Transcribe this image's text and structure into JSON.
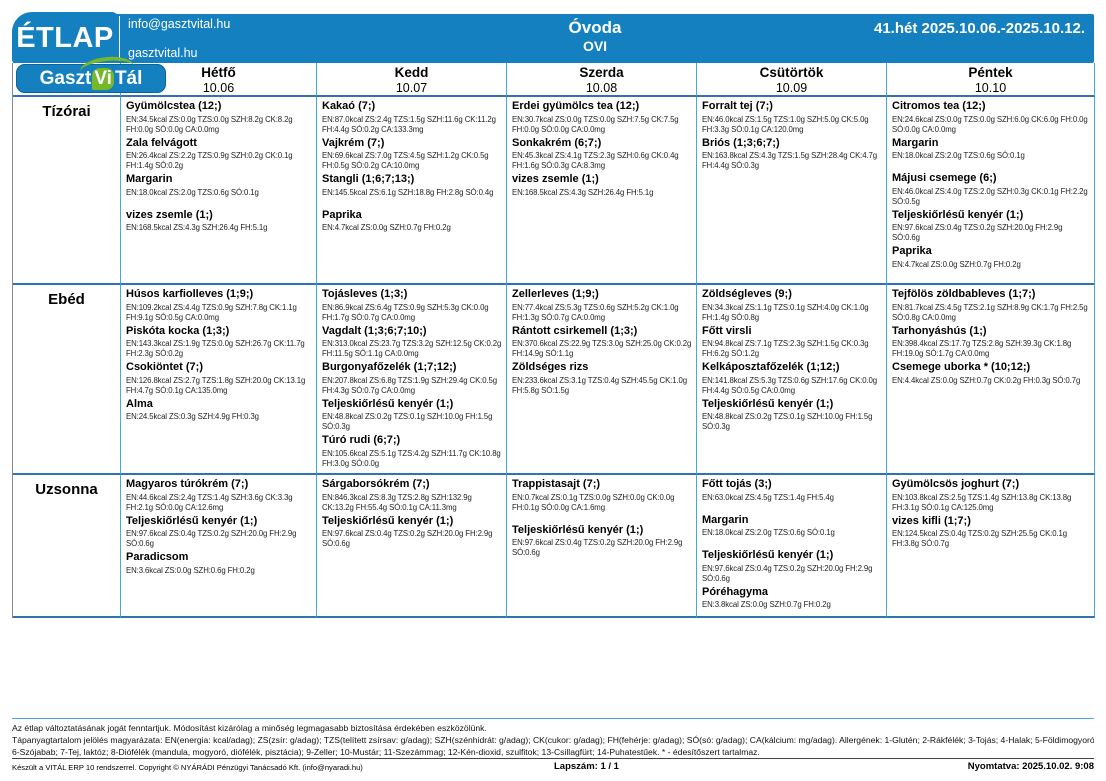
{
  "header": {
    "logo_text": "ÉTLAP",
    "email": "info@gasztvital.hu",
    "website": "gasztvital.hu",
    "org_name": "Óvoda",
    "org_code": "OVI",
    "week_range": "41.hét 2025.10.06.-2025.10.12."
  },
  "brand": {
    "part1": "Gaszt",
    "part2": "Vi",
    "part3": "Tál"
  },
  "colors": {
    "header_blue": "#1580c0",
    "grid_line_blue": "#4ba6dd",
    "row_line_blue": "#2e74b5",
    "brand_green": "#76b82a"
  },
  "table": {
    "days": [
      {
        "name": "Hétfő",
        "date": "10.06"
      },
      {
        "name": "Kedd",
        "date": "10.07"
      },
      {
        "name": "Szerda",
        "date": "10.08"
      },
      {
        "name": "Csütörtök",
        "date": "10.09"
      },
      {
        "name": "Péntek",
        "date": "10.10"
      }
    ],
    "meals": [
      {
        "label": "Tízórai",
        "cells": [
          {
            "items": [
              {
                "name": "Gyümölcstea (12;)",
                "info": "EN:34.5kcal ZS:0.0g TZS:0.0g SZH:8.2g CK:8.2g FH:0.0g SÓ:0.0g CA:0.0mg"
              },
              {
                "name": "Zala felvágott",
                "info": "EN:26.4kcal ZS:2.2g TZS:0.9g SZH:0.2g CK:0.1g FH:1.4g SÓ:0.2g"
              },
              {
                "name": "Margarin",
                "info": "EN:18.0kcal ZS:2.0g TZS:0.6g SÓ:0.1g"
              },
              {
                "name": "vizes zsemle (1;)",
                "info": "EN:168.5kcal ZS:4.3g SZH:26.4g FH:5.1g",
                "gap_before": true
              }
            ]
          },
          {
            "items": [
              {
                "name": "Kakaó (7;)",
                "info": "EN:87.0kcal ZS:2.4g TZS:1.5g SZH:11.6g CK:11.2g FH:4.4g SÓ:0.2g CA:133.3mg"
              },
              {
                "name": "Vajkrém (7;)",
                "info": "EN:69.6kcal ZS:7.0g TZS:4.5g SZH:1.2g CK:0.5g FH:0.5g SÓ:0.2g CA:10.0mg"
              },
              {
                "name": "Stangli (1;6;7;13;)",
                "info": "EN:145.5kcal ZS:6.1g SZH:18.8g FH:2.8g SÓ:0.4g"
              },
              {
                "name": "Paprika",
                "info": "EN:4.7kcal ZS:0.0g SZH:0.7g FH:0.2g",
                "gap_before": true
              }
            ]
          },
          {
            "items": [
              {
                "name": "Erdei gyümölcs tea (12;)",
                "info": "EN:30.7kcal ZS:0.0g TZS:0.0g SZH:7.5g CK:7.5g FH:0.0g SÓ:0.0g CA:0.0mg"
              },
              {
                "name": "Sonkakrém (6;7;)",
                "info": "EN:45.3kcal ZS:4.1g TZS:2.3g SZH:0.6g CK:0.4g FH:1.6g SÓ:0.3g CA:8.3mg"
              },
              {
                "name": "vizes zsemle (1;)",
                "info": "EN:168.5kcal ZS:4.3g SZH:26.4g FH:5.1g"
              }
            ]
          },
          {
            "items": [
              {
                "name": "Forralt tej  (7;)",
                "info": "EN:46.0kcal ZS:1.5g TZS:1.0g SZH:5.0g CK:5.0g FH:3.3g SÓ:0.1g CA:120.0mg"
              },
              {
                "name": "Briós (1;3;6;7;)",
                "info": "EN:163.8kcal ZS:4.3g TZS:1.5g SZH:28.4g CK:4.7g FH:4.4g SÓ:0.3g"
              }
            ]
          },
          {
            "items": [
              {
                "name": "Citromos tea (12;)",
                "info": "EN:24.6kcal ZS:0.0g TZS:0.0g SZH:6.0g CK:6.0g FH:0.0g SÓ:0.0g CA:0.0mg"
              },
              {
                "name": "Margarin",
                "info": "EN:18.0kcal ZS:2.0g TZS:0.6g SÓ:0.1g"
              },
              {
                "name": "Májusi csemege (6;)",
                "info": "EN:46.0kcal ZS:4.0g TZS:2.0g SZH:0.3g CK:0.1g FH:2.2g SÓ:0.5g",
                "gap_before": true
              },
              {
                "name": "Teljeskiőrlésű kenyér  (1;)",
                "info": "EN:97.6kcal ZS:0.4g TZS:0.2g SZH:20.0g FH:2.9g SÓ:0.6g"
              },
              {
                "name": "Paprika",
                "info": "EN:4.7kcal ZS:0.0g SZH:0.7g FH:0.2g"
              }
            ]
          }
        ]
      },
      {
        "label": "Ebéd",
        "cells": [
          {
            "items": [
              {
                "name": "Húsos karfiolleves (1;9;)",
                "info": "EN:109.2kcal ZS:4.4g TZS:0.9g SZH:7.8g CK:1.1g FH:9.1g SÓ:0.5g CA:0.0mg"
              },
              {
                "name": "Piskóta kocka (1;3;)",
                "info": "EN:143.3kcal ZS:1.9g TZS:0.0g SZH:26.7g CK:11.7g FH:2.3g SÓ:0.2g"
              },
              {
                "name": "Csokiöntet (7;)",
                "info": "EN:126.8kcal ZS:2.7g TZS:1.8g SZH:20.0g CK:13.1g FH:4.7g SÓ:0.1g CA:135.0mg"
              },
              {
                "name": "Alma",
                "info": "EN:24.5kcal ZS:0.3g SZH:4.9g FH:0.3g"
              }
            ]
          },
          {
            "items": [
              {
                "name": "Tojásleves (1;3;)",
                "info": "EN:86.9kcal ZS:6.4g TZS:0.9g SZH:5.3g CK:0.0g FH:1.7g SÓ:0.7g CA:0.0mg"
              },
              {
                "name": "Vagdalt  (1;3;6;7;10;)",
                "info": "EN:313.0kcal ZS:23.7g TZS:3.2g SZH:12.5g CK:0.2g FH:11.5g SÓ:1.1g CA:0.0mg"
              },
              {
                "name": "Burgonyafőzelék (1;7;12;)",
                "info": "EN:207.8kcal ZS:6.8g TZS:1.9g SZH:29.4g CK:0.5g FH:4.3g SÓ:0.7g CA:0.0mg"
              },
              {
                "name": "Teljeskiőrlésű kenyér (1;)",
                "info": "EN:48.8kcal ZS:0.2g TZS:0.1g SZH:10.0g FH:1.5g SÓ:0.3g"
              },
              {
                "name": "Túró rudi (6;7;)",
                "info": "EN:105.6kcal ZS:5.1g TZS:4.2g SZH:11.7g CK:10.8g FH:3.0g SÓ:0.0g"
              }
            ]
          },
          {
            "items": [
              {
                "name": "Zellerleves (1;9;)",
                "info": "EN:77.4kcal ZS:5.3g TZS:0.6g SZH:5.2g CK:1.0g FH:1.3g SÓ:0.7g CA:0.0mg"
              },
              {
                "name": "Rántott csirkemell (1;3;)",
                "info": "EN:370.6kcal ZS:22.9g TZS:3.0g SZH:25.0g CK:0.2g FH:14.9g SÓ:1.1g"
              },
              {
                "name": "Zöldséges rizs",
                "info": "EN:233.6kcal ZS:3.1g TZS:0.4g SZH:45.5g CK:1.0g FH:5.8g SÓ:1.5g"
              }
            ]
          },
          {
            "items": [
              {
                "name": "Zöldségleves (9;)",
                "info": "EN:34.3kcal ZS:1.1g TZS:0.1g SZH:4.0g CK:1.0g FH:1.4g SÓ:0.8g"
              },
              {
                "name": "Főtt virsli",
                "info": "EN:94.8kcal ZS:7.1g TZS:2.3g SZH:1.5g CK:0.3g FH:6.2g SÓ:1.2g"
              },
              {
                "name": "Kelkáposztafőzelék (1;12;)",
                "info": "EN:141.8kcal ZS:5.3g TZS:0.6g SZH:17.6g CK:0.0g FH:4.4g SÓ:0.5g CA:0.0mg"
              },
              {
                "name": "Teljeskiőrlésű kenyér (1;)",
                "info": "EN:48.8kcal ZS:0.2g TZS:0.1g SZH:10.0g FH:1.5g SÓ:0.3g"
              }
            ]
          },
          {
            "items": [
              {
                "name": "Tejfölös zöldbableves (1;7;)",
                "info": "EN:81.7kcal ZS:4.5g TZS:2.1g SZH:8.9g CK:1.7g FH:2.5g SÓ:0.8g CA:0.0mg"
              },
              {
                "name": "Tarhonyáshús (1;)",
                "info": "EN:398.4kcal ZS:17.7g TZS:2.8g SZH:39.3g CK:1.8g FH:19.0g SÓ:1.7g CA:0.0mg"
              },
              {
                "name": "Csemege uborka * (10;12;)",
                "info": "EN:4.4kcal ZS:0.0g SZH:0.7g CK:0.2g FH:0.3g SÓ:0.7g"
              }
            ]
          }
        ]
      },
      {
        "label": "Uzsonna",
        "cells": [
          {
            "items": [
              {
                "name": "Magyaros túrókrém (7;)",
                "info": "EN:44.6kcal ZS:2.4g TZS:1.4g SZH:3.6g CK:3.3g FH:2.1g SÓ:0.0g CA:12.6mg"
              },
              {
                "name": "Teljeskiőrlésű kenyér  (1;)",
                "info": "EN:97.6kcal ZS:0.4g TZS:0.2g SZH:20.0g FH:2.9g SÓ:0.6g"
              },
              {
                "name": "Paradicsom",
                "info": "EN:3.6kcal ZS:0.0g SZH:0.6g FH:0.2g"
              }
            ]
          },
          {
            "items": [
              {
                "name": "Sárgaborsókrém  (7;)",
                "info": "EN:846.3kcal ZS:8.3g TZS:2.8g SZH:132.9g CK:13.2g FH:55.4g SÓ:0.1g CA:11.3mg"
              },
              {
                "name": "Teljeskiőrlésű kenyér  (1;)",
                "info": "EN:97.6kcal ZS:0.4g TZS:0.2g SZH:20.0g FH:2.9g SÓ:0.6g"
              }
            ]
          },
          {
            "items": [
              {
                "name": "Trappistasajt (7;)",
                "info": "EN:0.7kcal ZS:0.1g TZS:0.0g SZH:0.0g CK:0.0g FH:0.1g SÓ:0.0g CA:1.6mg"
              },
              {
                "name": "Teljeskiőrlésű kenyér  (1;)",
                "info": "EN:97.6kcal ZS:0.4g TZS:0.2g SZH:20.0g FH:2.9g SÓ:0.6g",
                "gap_before": true
              }
            ]
          },
          {
            "items": [
              {
                "name": "Főtt tojás  (3;)",
                "info": "EN:63.0kcal ZS:4.5g TZS:1.4g FH:5.4g"
              },
              {
                "name": "Margarin",
                "info": "EN:18.0kcal ZS:2.0g TZS:0.6g SÓ:0.1g",
                "gap_before": true
              },
              {
                "name": "Teljeskiőrlésű kenyér  (1;)",
                "info": "EN:97.6kcal ZS:0.4g TZS:0.2g SZH:20.0g FH:2.9g SÓ:0.6g",
                "gap_before": true
              },
              {
                "name": "Póréhagyma",
                "info": "EN:3.8kcal ZS:0.0g SZH:0.7g FH:0.2g"
              }
            ]
          },
          {
            "items": [
              {
                "name": "Gyümölcsös joghurt (7;)",
                "info": "EN:103.8kcal ZS:2.5g TZS:1.4g SZH:13.8g CK:13.8g FH:3.1g SÓ:0.1g CA:125.0mg"
              },
              {
                "name": "vizes kifli (1;7;)",
                "info": "EN:124.5kcal ZS:0.4g TZS:0.2g SZH:25.5g CK:0.1g FH:3.8g SÓ:0.7g"
              }
            ]
          }
        ]
      }
    ]
  },
  "footer": {
    "disclaimer": "Az étlap változtatásának jogát fenntartjuk. Módosítást kizárólag a minőség legmagasabb biztosítása érdekében eszközölünk.",
    "legend_line1": "Tápanyagtartalom jelölés magyarázata: EN(energia: kcal/adag); ZS(zsír: g/adag); TZS(telített zsírsav: g/adag); SZH(szénhidrát: g/adag); CK(cukor: g/adag); FH(fehérje: g/adag); SÓ(só: g/adag); CA(kálcium: mg/adag). Allergének: 1-Glutén; 2-Rákfélék; 3-Tojás; 4-Halak; 5-Földimogyoró;",
    "legend_line2": "6-Szójabab; 7-Tej, laktóz; 8-Diófélék (mandula, mogyoró, diófélék, pisztácia); 9-Zeller; 10-Mustár; 11-Szezámmag; 12-Kén-dioxid, szulfitok; 13-Csillagfürt; 14-Puhatestűek. * - édesítőszert tartalmaz.",
    "made_with": "Készült a VITÁL ERP 10 rendszerrel. Copyright © NYÁRÁDI Pénzügyi Tanácsadó Kft. (info@nyaradi.hu)",
    "page_number": "Lapszám: 1 / 1",
    "printed": "Nyomtatva: 2025.10.02. 9:08"
  }
}
